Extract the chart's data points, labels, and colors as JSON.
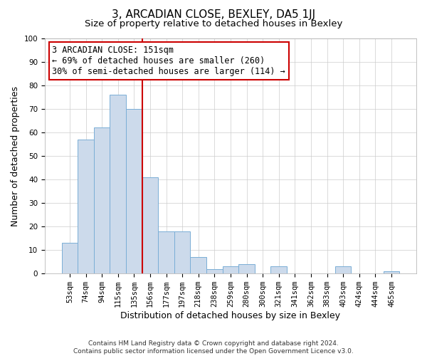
{
  "title": "3, ARCADIAN CLOSE, BEXLEY, DA5 1JJ",
  "subtitle": "Size of property relative to detached houses in Bexley",
  "xlabel": "Distribution of detached houses by size in Bexley",
  "ylabel": "Number of detached properties",
  "bar_labels": [
    "53sqm",
    "74sqm",
    "94sqm",
    "115sqm",
    "135sqm",
    "156sqm",
    "177sqm",
    "197sqm",
    "218sqm",
    "238sqm",
    "259sqm",
    "280sqm",
    "300sqm",
    "321sqm",
    "341sqm",
    "362sqm",
    "383sqm",
    "403sqm",
    "424sqm",
    "444sqm",
    "465sqm"
  ],
  "bar_values": [
    13,
    57,
    62,
    76,
    70,
    41,
    18,
    18,
    7,
    2,
    3,
    4,
    0,
    3,
    0,
    0,
    0,
    3,
    0,
    0,
    1
  ],
  "bar_color": "#ccdaeb",
  "bar_edge_color": "#7aaed6",
  "vline_color": "#cc0000",
  "annotation_text": "3 ARCADIAN CLOSE: 151sqm\n← 69% of detached houses are smaller (260)\n30% of semi-detached houses are larger (114) →",
  "annotation_box_color": "#ffffff",
  "annotation_box_edge": "#cc0000",
  "ylim": [
    0,
    100
  ],
  "yticks": [
    0,
    10,
    20,
    30,
    40,
    50,
    60,
    70,
    80,
    90,
    100
  ],
  "grid_color": "#cccccc",
  "bg_color": "#ffffff",
  "footer": "Contains HM Land Registry data © Crown copyright and database right 2024.\nContains public sector information licensed under the Open Government Licence v3.0.",
  "title_fontsize": 11,
  "subtitle_fontsize": 9.5,
  "axis_label_fontsize": 9,
  "tick_fontsize": 7.5,
  "annotation_fontsize": 8.5,
  "footer_fontsize": 6.5
}
